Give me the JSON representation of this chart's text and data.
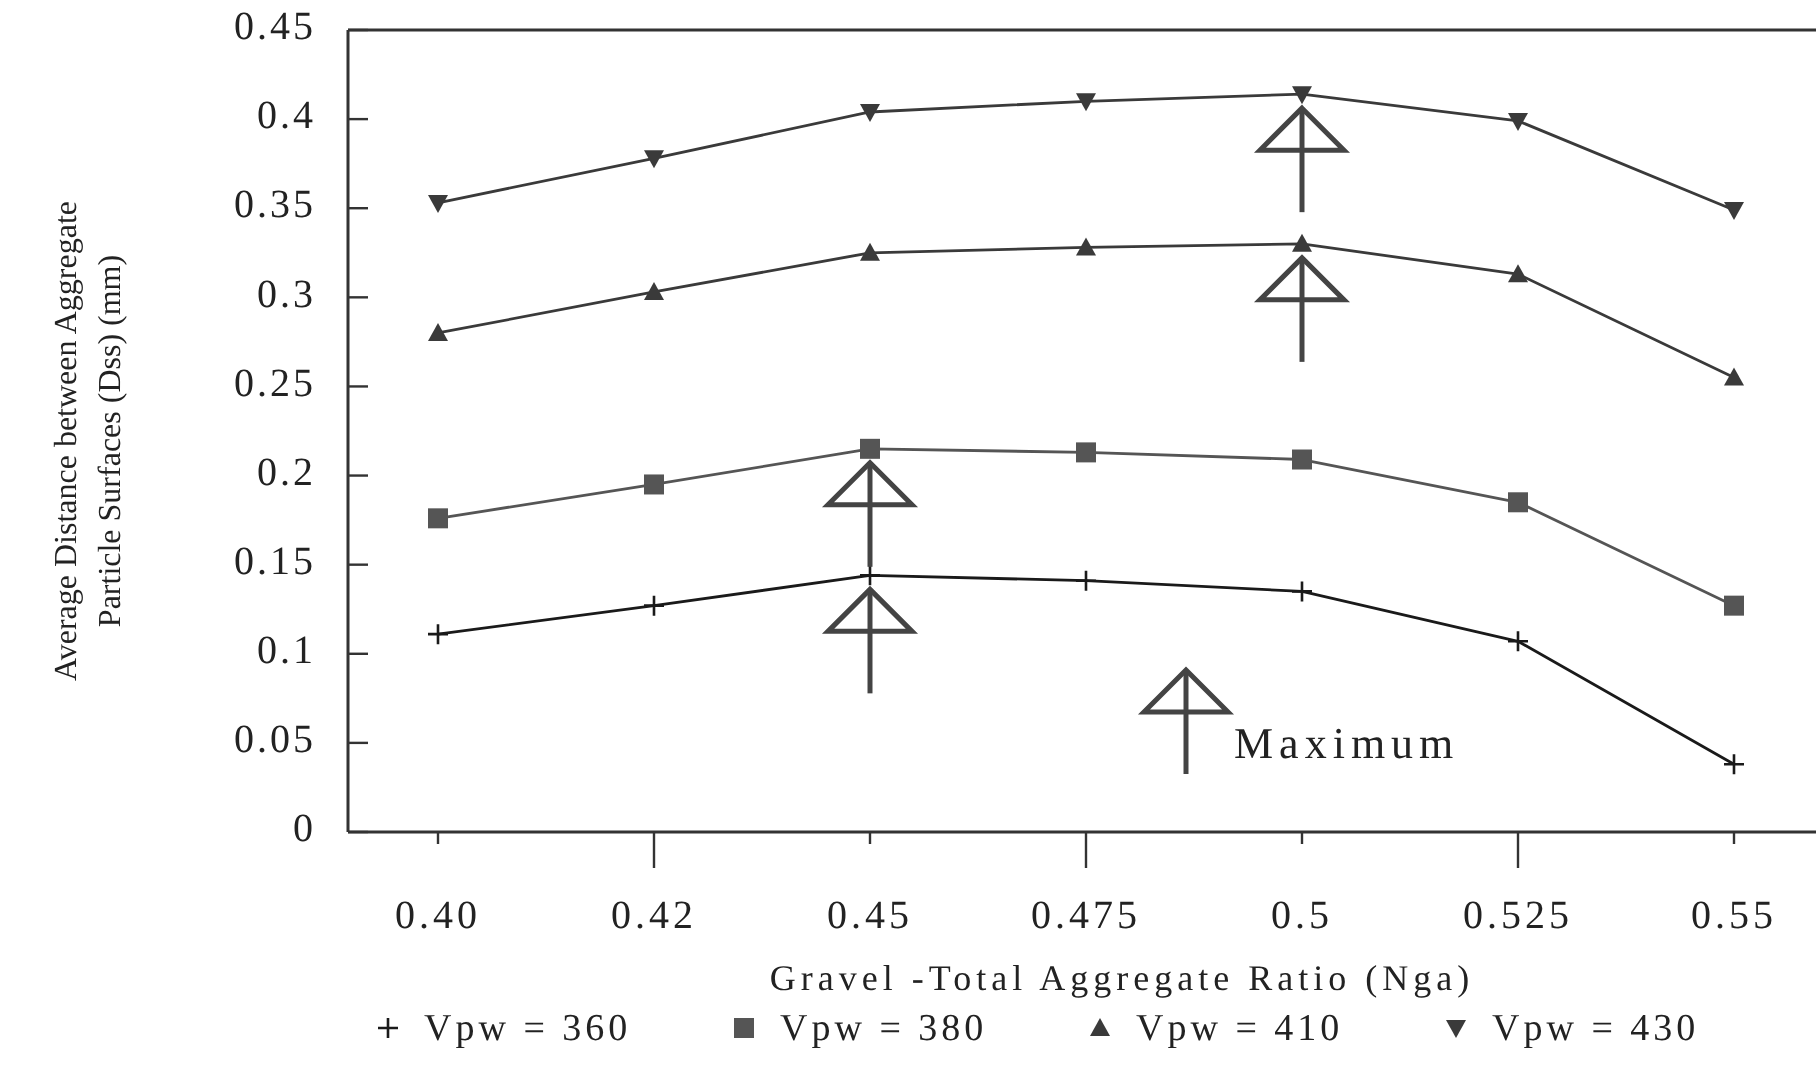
{
  "chart_data": {
    "type": "line",
    "xlabel": "Gravel -Total Aggregate Ratio (Nga)",
    "ylabel": "Average Distance between Aggregate\nParticle Surfaces (Dss) (mm)",
    "categories": [
      "0.40",
      "0.42",
      "0.45",
      "0.475",
      "0.5",
      "0.525",
      "0.55"
    ],
    "series": [
      {
        "name": "Vpw = 360",
        "color": "#1a1a1a",
        "marker": "cross",
        "values": [
          0.111,
          0.127,
          0.144,
          0.141,
          0.135,
          0.107,
          0.038
        ]
      },
      {
        "name": "Vpw = 380",
        "color": "#555555",
        "marker": "square",
        "values": [
          0.176,
          0.195,
          0.215,
          0.213,
          0.209,
          0.185,
          0.127
        ]
      },
      {
        "name": "Vpw = 410",
        "color": "#3a3a3a",
        "marker": "triangle",
        "values": [
          0.28,
          0.303,
          0.325,
          0.328,
          0.33,
          0.313,
          0.255
        ]
      },
      {
        "name": "Vpw = 430",
        "color": "#3a3a3a",
        "marker": "triangle-down",
        "values": [
          0.353,
          0.378,
          0.404,
          0.41,
          0.414,
          0.399,
          0.349
        ]
      }
    ],
    "ylim": [
      0,
      0.45
    ],
    "yticks": [
      0,
      0.05,
      0.1,
      0.15,
      0.2,
      0.25,
      0.3,
      0.35,
      0.4,
      0.45
    ],
    "annotations": [
      "Maximum"
    ],
    "legend": "bottom",
    "grid": false
  }
}
